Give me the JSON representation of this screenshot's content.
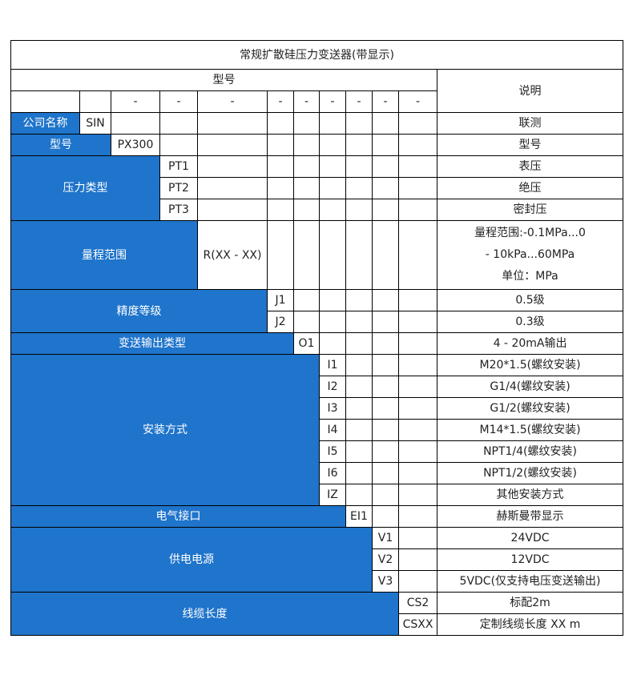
{
  "title": "常规扩散硅压力变送器(带显示)",
  "header": {
    "model": "型号",
    "description": "说明",
    "dash": "-"
  },
  "colors": {
    "category_fill": "#1f74cb",
    "category_text": "#ffffff",
    "border": "#000000"
  },
  "rows": {
    "company": {
      "category": "公司名称",
      "code": "SIN",
      "desc": "联测"
    },
    "model": {
      "category": "型号",
      "code": "PX300",
      "desc": "型号"
    },
    "pressure_type": {
      "category": "压力类型",
      "options": [
        {
          "code": "PT1",
          "desc": "表压"
        },
        {
          "code": "PT2",
          "desc": "绝压"
        },
        {
          "code": "PT3",
          "desc": "密封压"
        }
      ]
    },
    "range": {
      "category": "量程范围",
      "code": "R(XX - XX)",
      "desc": [
        "量程范围:-0.1MPa...0",
        "- 10kPa...60MPa",
        "单位：MPa"
      ]
    },
    "accuracy": {
      "category": "精度等级",
      "options": [
        {
          "code": "J1",
          "desc": "0.5级"
        },
        {
          "code": "J2",
          "desc": "0.3级"
        }
      ]
    },
    "output": {
      "category": "变送输出类型",
      "code": "O1",
      "desc": "4 - 20mA输出"
    },
    "mounting": {
      "category": "安装方式",
      "options": [
        {
          "code": "I1",
          "desc": "M20*1.5(螺纹安装)"
        },
        {
          "code": "I2",
          "desc": "G1/4(螺纹安装)"
        },
        {
          "code": "I3",
          "desc": "G1/2(螺纹安装)"
        },
        {
          "code": "I4",
          "desc": "M14*1.5(螺纹安装)"
        },
        {
          "code": "I5",
          "desc": "NPT1/4(螺纹安装)"
        },
        {
          "code": "I6",
          "desc": "NPT1/2(螺纹安装)"
        },
        {
          "code": "IZ",
          "desc": "其他安装方式"
        }
      ]
    },
    "electrical": {
      "category": "电气接口",
      "code": "EI1",
      "desc": "赫斯曼带显示"
    },
    "power": {
      "category": "供电电源",
      "options": [
        {
          "code": "V1",
          "desc": "24VDC"
        },
        {
          "code": "V2",
          "desc": "12VDC"
        },
        {
          "code": "V3",
          "desc": "5VDC(仅支持电压变送输出)"
        }
      ]
    },
    "cable": {
      "category": "线缆长度",
      "options": [
        {
          "code": "CS2",
          "desc": "标配2m"
        },
        {
          "code": "CSXX",
          "desc": "定制线缆长度 XX m"
        }
      ]
    }
  }
}
